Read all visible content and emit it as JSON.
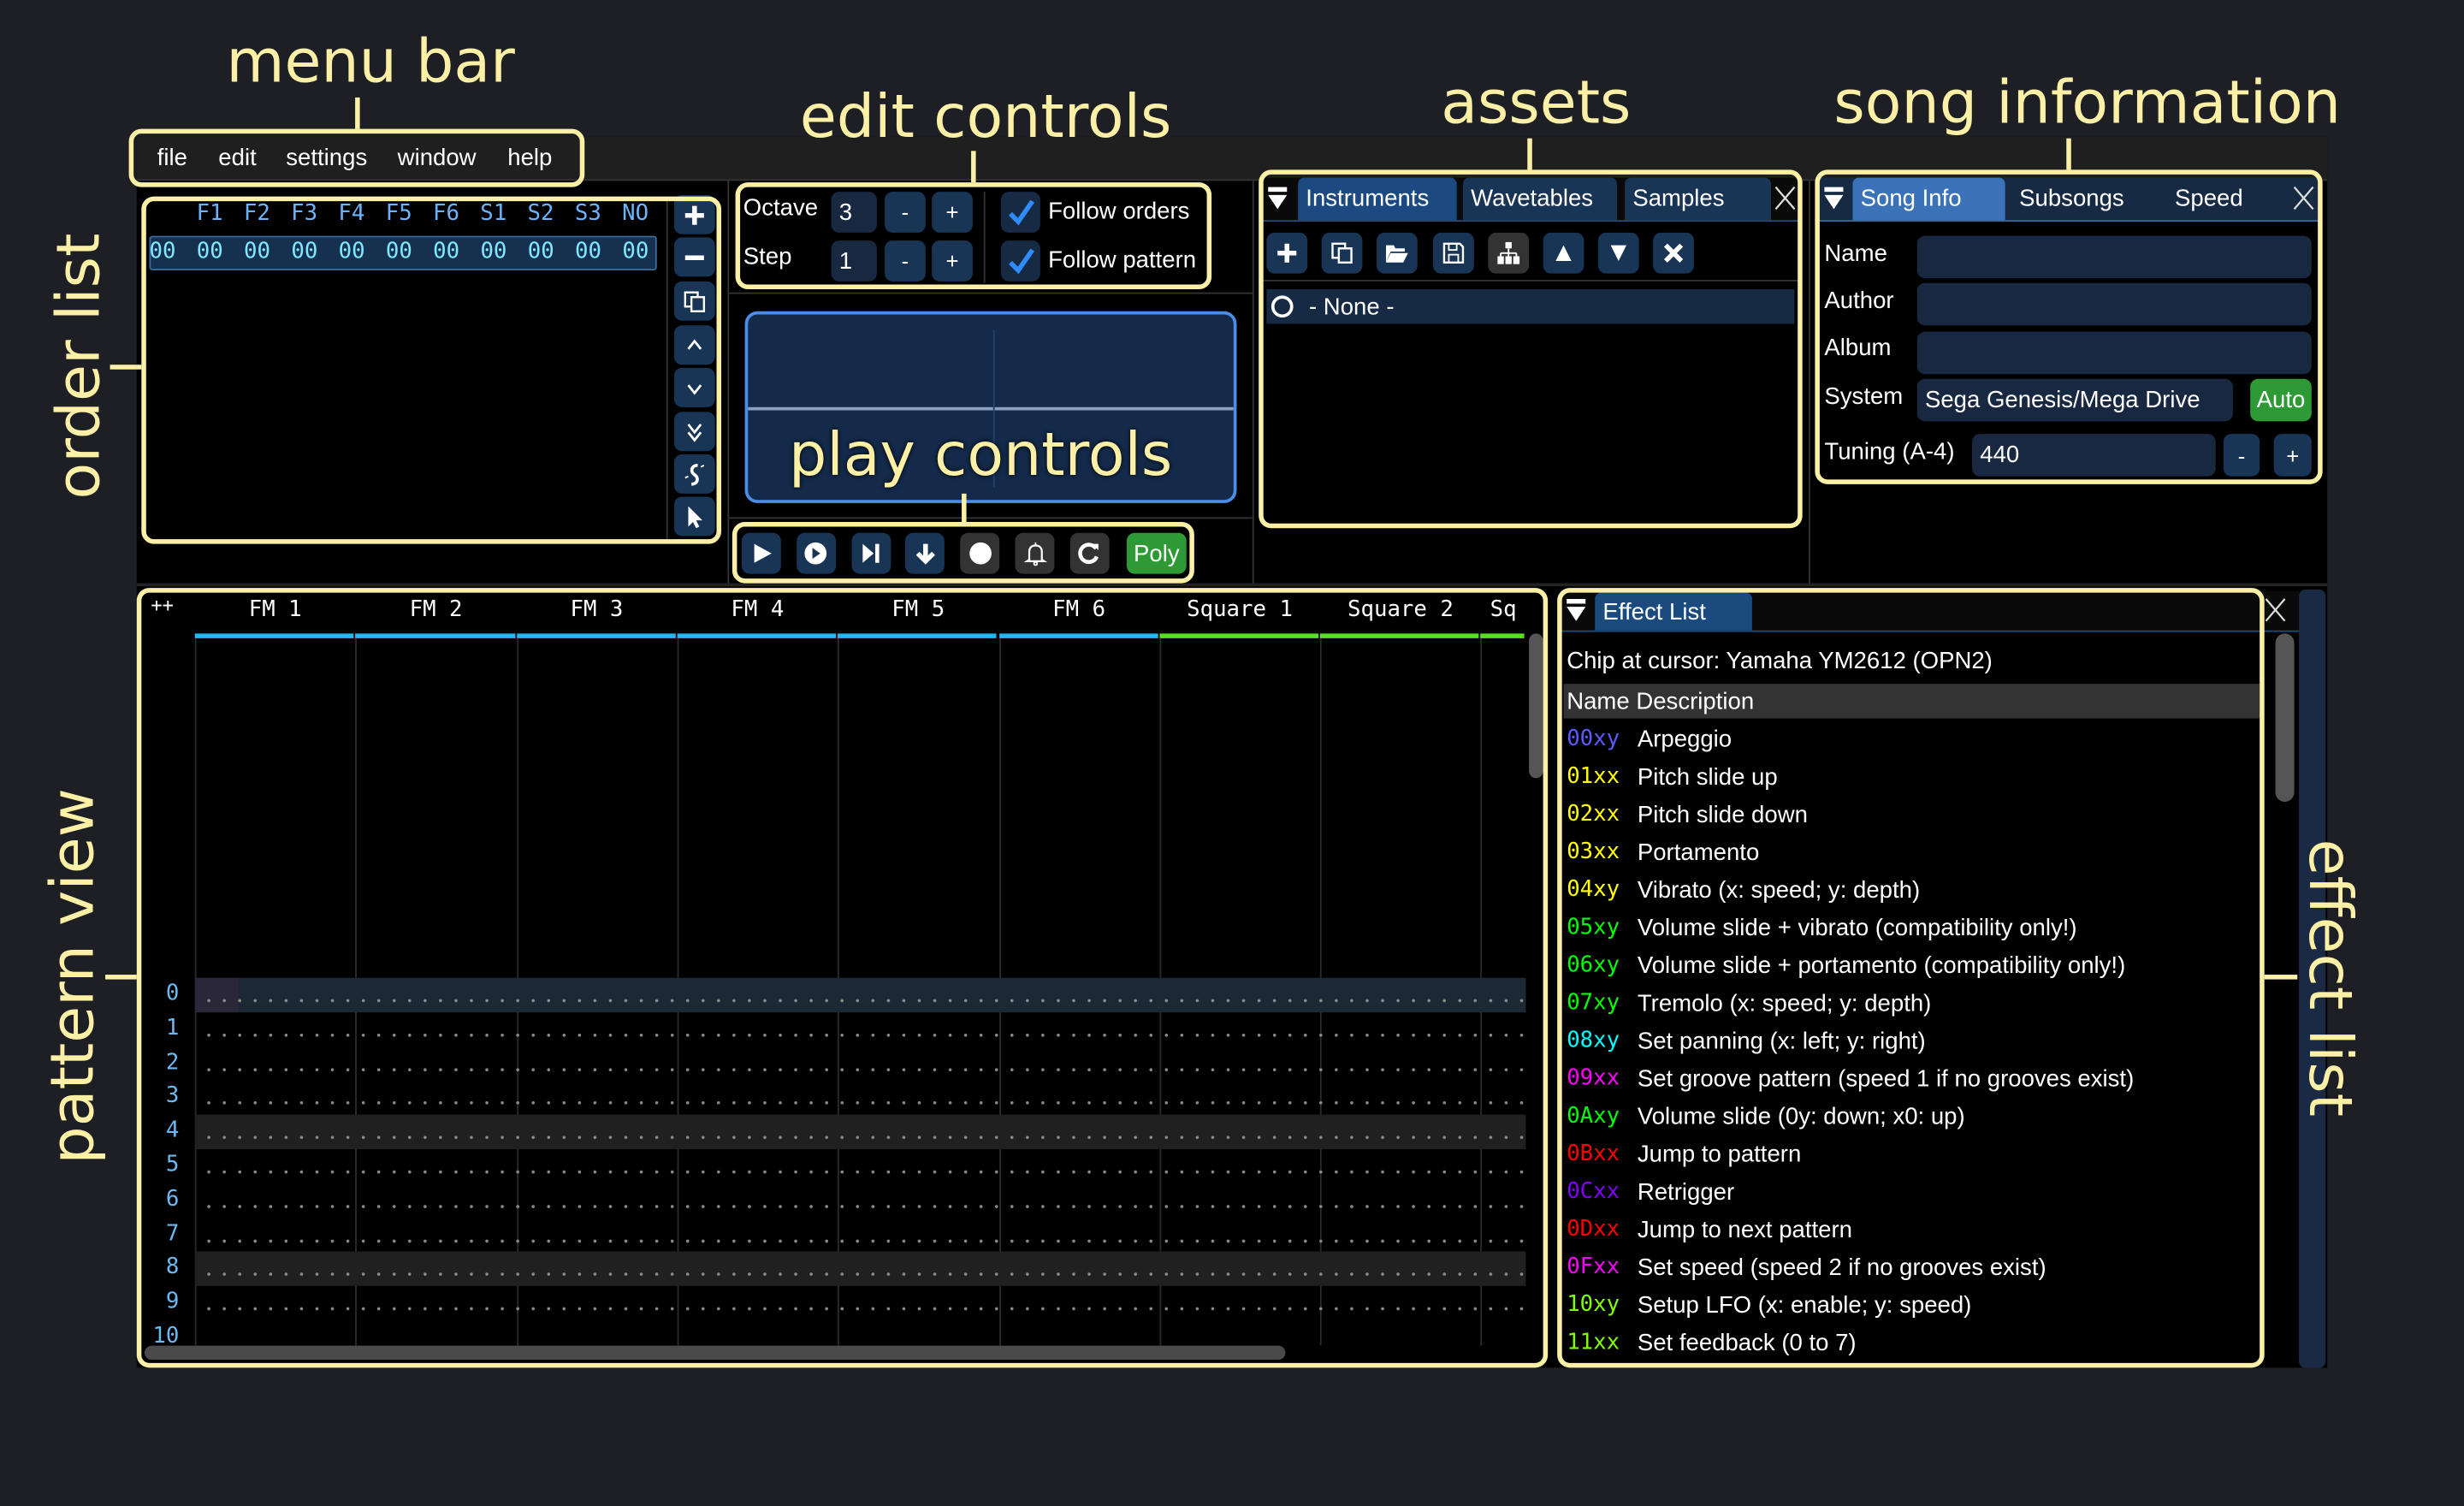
{
  "annotations": {
    "menu_bar": "menu bar",
    "edit_controls": "edit controls",
    "assets": "assets",
    "song_information": "song information",
    "order_list": "order list",
    "play_controls": "play controls",
    "pattern_view": "pattern view",
    "effect_list": "effect list"
  },
  "menu": [
    "file",
    "edit",
    "settings",
    "window",
    "help"
  ],
  "order_list": {
    "headers": [
      "F1",
      "F2",
      "F3",
      "F4",
      "F5",
      "F6",
      "S1",
      "S2",
      "S3",
      "NO"
    ],
    "rows": [
      [
        "00",
        "00",
        "00",
        "00",
        "00",
        "00",
        "00",
        "00",
        "00",
        "00",
        "00"
      ]
    ],
    "buttons": [
      "add-icon",
      "remove-icon",
      "duplicate-icon",
      "move-up-icon",
      "move-down-icon",
      "move-down-fast-icon",
      "unlink-icon",
      "cursor-icon"
    ]
  },
  "edit_controls": {
    "octave_label": "Octave",
    "octave_value": "3",
    "step_label": "Step",
    "step_value": "1",
    "minus": "-",
    "plus": "+",
    "follow_orders": "Follow orders",
    "follow_orders_checked": true,
    "follow_pattern": "Follow pattern",
    "follow_pattern_checked": true
  },
  "play_controls": {
    "buttons": [
      "play-icon",
      "play-pattern-icon",
      "step-icon",
      "stop-follow-icon",
      "record-icon",
      "metronome-icon",
      "repeat-icon"
    ],
    "poly_label": "Poly"
  },
  "assets": {
    "tabs": [
      "Instruments",
      "Wavetables",
      "Samples"
    ],
    "active_tab": 0,
    "toolbar": [
      "add-icon",
      "duplicate-icon",
      "open-folder-icon",
      "save-icon",
      "hierarchy-icon",
      "move-up-icon",
      "move-down-icon",
      "delete-icon"
    ],
    "items": [
      "- None -"
    ]
  },
  "song_info": {
    "tabs": [
      "Song Info",
      "Subsongs",
      "Speed"
    ],
    "active_tab": 0,
    "name_label": "Name",
    "name_value": "",
    "author_label": "Author",
    "author_value": "",
    "album_label": "Album",
    "album_value": "",
    "system_label": "System",
    "system_value": "Sega Genesis/Mega Drive",
    "auto_label": "Auto",
    "tuning_label": "Tuning (A-4)",
    "tuning_value": "440",
    "minus": "-",
    "plus": "+"
  },
  "pattern_view": {
    "corner": "++",
    "channels": [
      {
        "name": "FM 1",
        "color": "#22b8f0"
      },
      {
        "name": "FM 2",
        "color": "#22b8f0"
      },
      {
        "name": "FM 3",
        "color": "#22b8f0"
      },
      {
        "name": "FM 4",
        "color": "#22b8f0"
      },
      {
        "name": "FM 5",
        "color": "#22b8f0"
      },
      {
        "name": "FM 6",
        "color": "#22b8f0"
      },
      {
        "name": "Square 1",
        "color": "#55e020"
      },
      {
        "name": "Square 2",
        "color": "#55e020"
      },
      {
        "name": "Sq",
        "color": "#55e020"
      }
    ],
    "rows": [
      "0",
      "1",
      "2",
      "3",
      "4",
      "5",
      "6",
      "7",
      "8",
      "9",
      "10"
    ]
  },
  "effect_list": {
    "tab": "Effect List",
    "chip": "Chip at cursor: Yamaha YM2612 (OPN2)",
    "header": "Name Description",
    "effects": [
      {
        "code": "00xy",
        "desc": "Arpeggio",
        "color": "#5a5aff"
      },
      {
        "code": "01xx",
        "desc": "Pitch slide up",
        "color": "#ffff00"
      },
      {
        "code": "02xx",
        "desc": "Pitch slide down",
        "color": "#ffff00"
      },
      {
        "code": "03xx",
        "desc": "Portamento",
        "color": "#ffff00"
      },
      {
        "code": "04xy",
        "desc": "Vibrato (x: speed; y: depth)",
        "color": "#ffff00"
      },
      {
        "code": "05xy",
        "desc": "Volume slide + vibrato (compatibility only!)",
        "color": "#00ff00"
      },
      {
        "code": "06xy",
        "desc": "Volume slide + portamento (compatibility only!)",
        "color": "#00ff00"
      },
      {
        "code": "07xy",
        "desc": "Tremolo (x: speed; y: depth)",
        "color": "#00ff00"
      },
      {
        "code": "08xy",
        "desc": "Set panning (x: left; y: right)",
        "color": "#00ffff"
      },
      {
        "code": "09xx",
        "desc": "Set groove pattern (speed 1 if no grooves exist)",
        "color": "#ff00ff"
      },
      {
        "code": "0Axy",
        "desc": "Volume slide (0y: down; x0: up)",
        "color": "#00ff00"
      },
      {
        "code": "0Bxx",
        "desc": "Jump to pattern",
        "color": "#ff0000"
      },
      {
        "code": "0Cxx",
        "desc": "Retrigger",
        "color": "#8000ff"
      },
      {
        "code": "0Dxx",
        "desc": "Jump to next pattern",
        "color": "#ff0000"
      },
      {
        "code": "0Fxx",
        "desc": "Set speed (speed 2 if no grooves exist)",
        "color": "#ff00ff"
      },
      {
        "code": "10xy",
        "desc": "Setup LFO (x: enable; y: speed)",
        "color": "#80ff00"
      },
      {
        "code": "11xx",
        "desc": "Set feedback (0 to 7)",
        "color": "#80ff00"
      }
    ]
  }
}
